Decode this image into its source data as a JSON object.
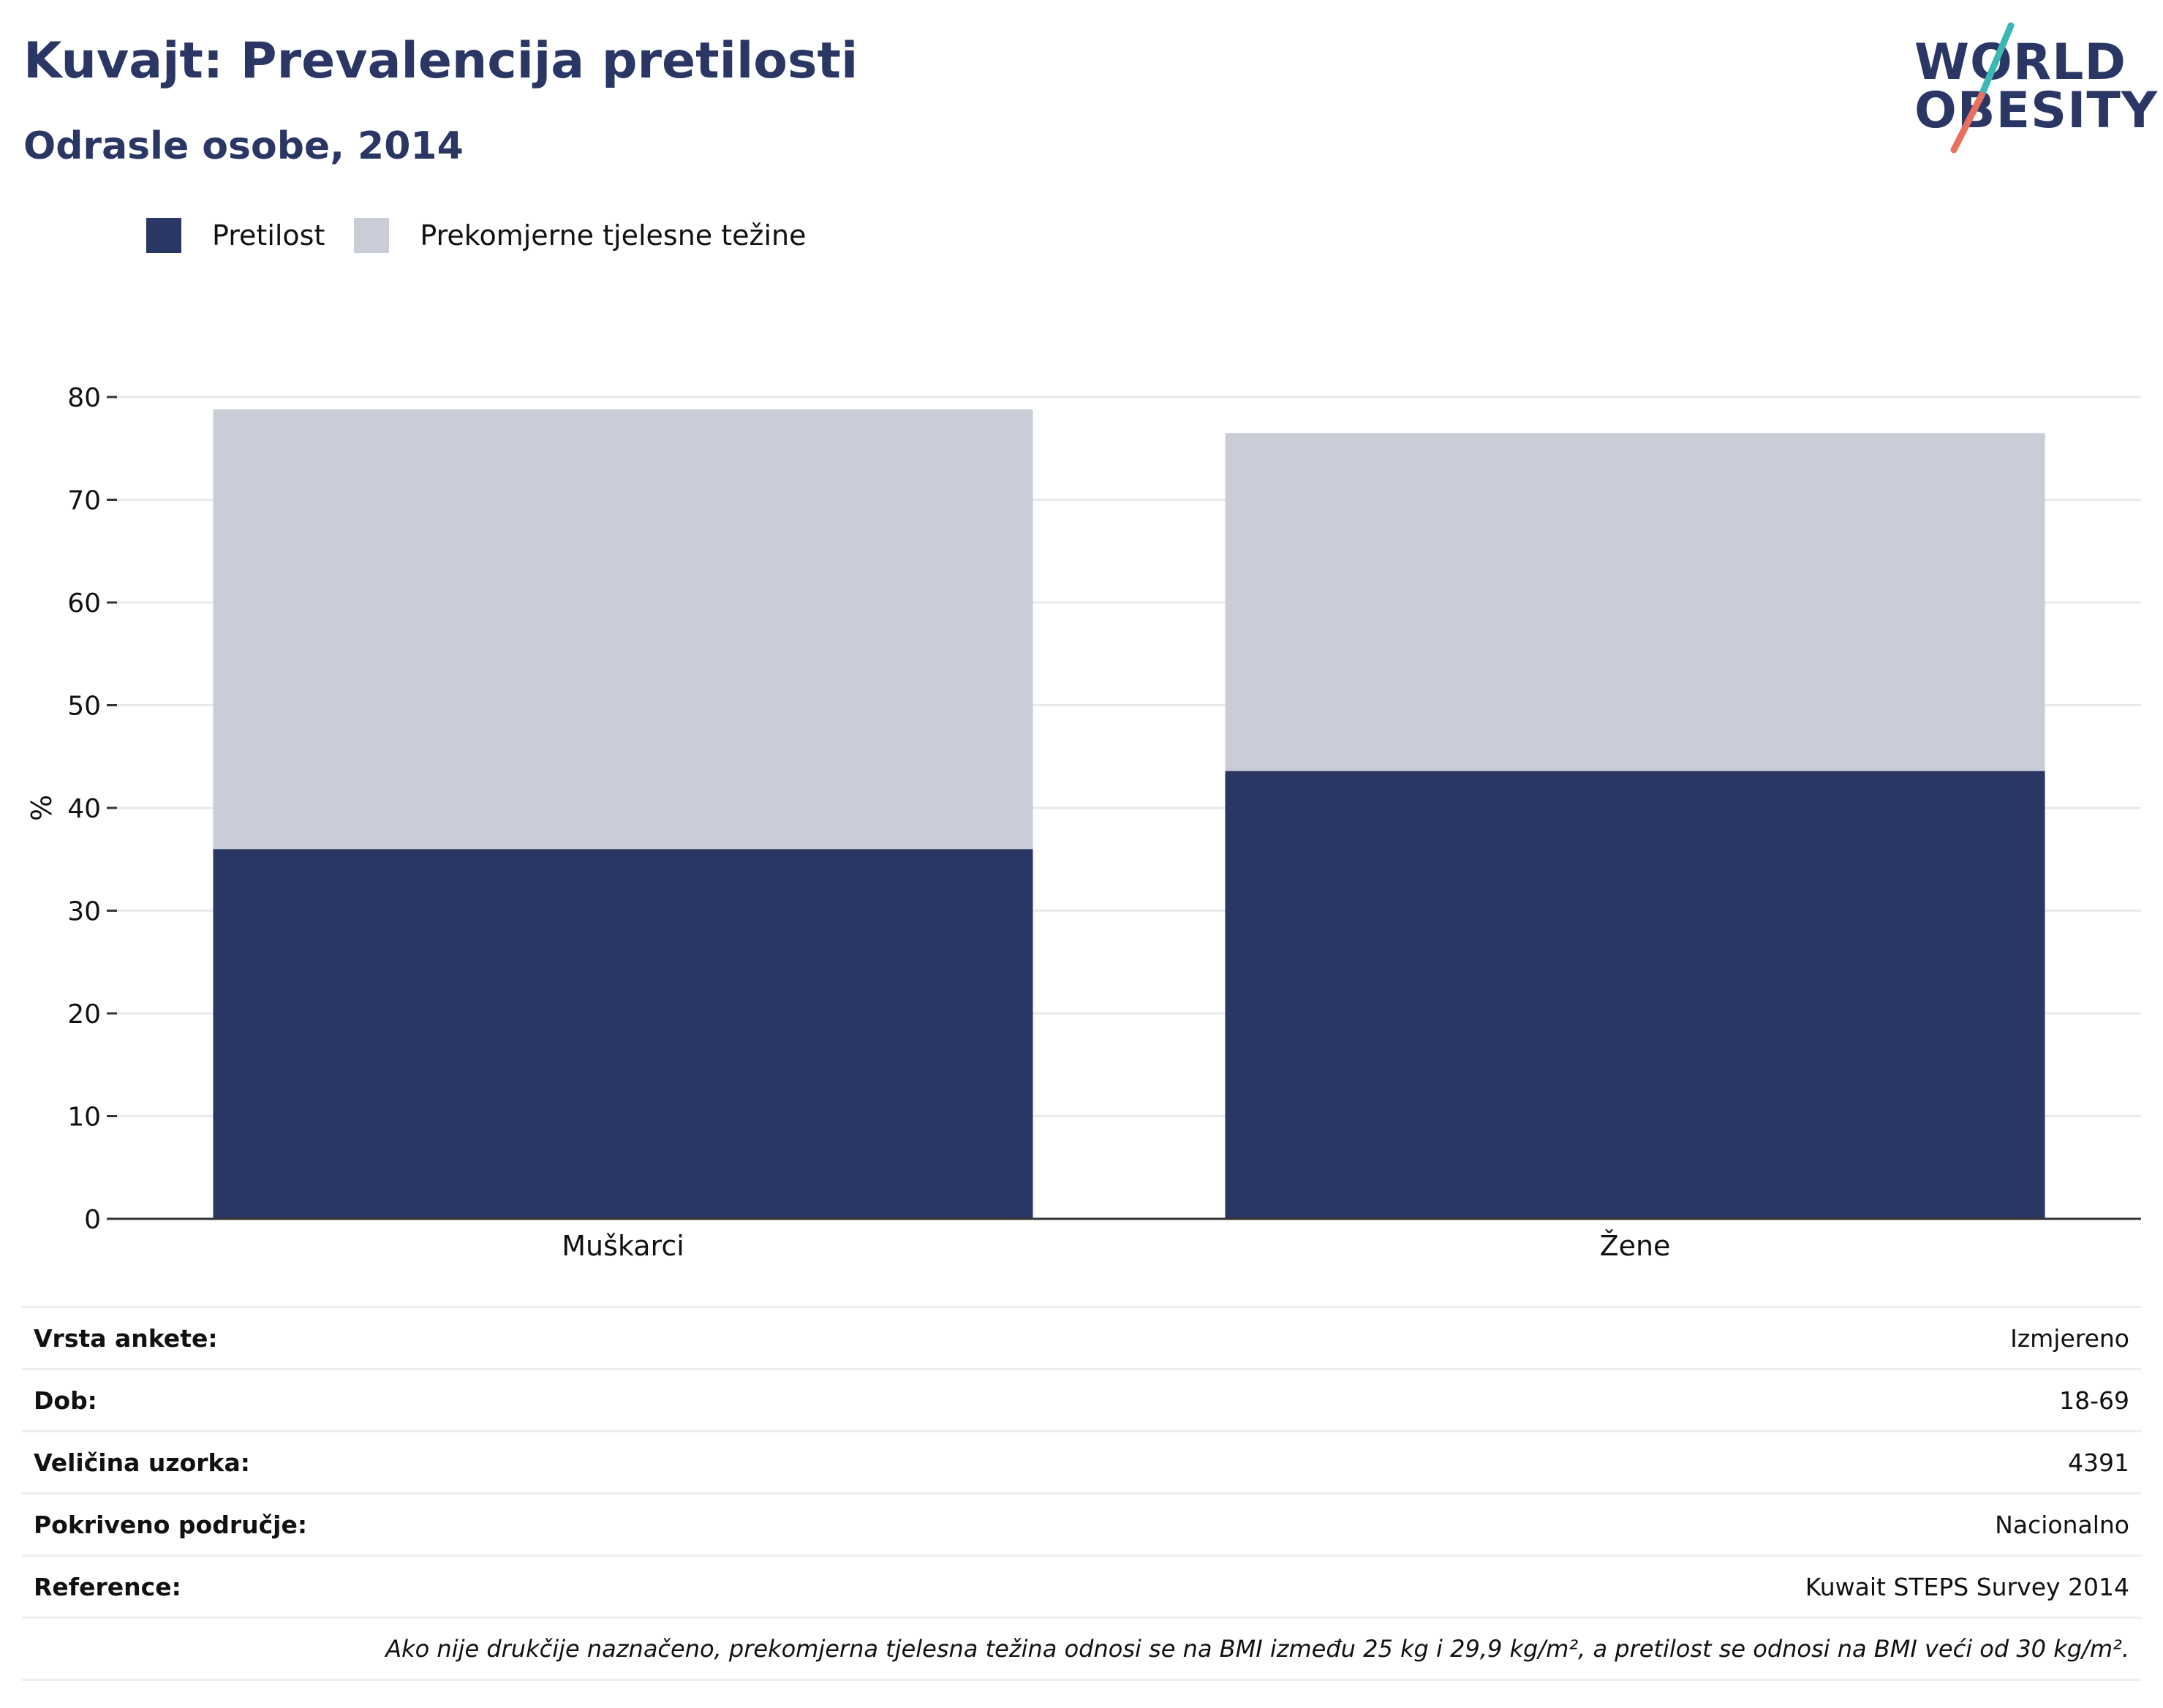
{
  "header": {
    "title": "Kuvajt: Prevalencija pretilosti",
    "subtitle": "Odrasle osobe, 2014"
  },
  "logo": {
    "line1": "WORLD",
    "line2": "OBESITY",
    "colors": {
      "text": "#2a3664",
      "slash_top": "#3bb8b4",
      "slash_bottom": "#e8705e"
    }
  },
  "legend": {
    "items": [
      {
        "label": "Pretilost",
        "color": "#2a3664"
      },
      {
        "label": "Prekomjerne tjelesne težine",
        "color": "#cacdd8"
      }
    ]
  },
  "chart_data": {
    "type": "bar",
    "stacked": true,
    "categories": [
      "Muškarci",
      "Žene"
    ],
    "series": [
      {
        "name": "Pretilost",
        "values": [
          36.0,
          43.6
        ],
        "color": "#2a3664"
      },
      {
        "name": "Prekomjerne tjelesne težine",
        "values": [
          42.8,
          32.9
        ],
        "color": "#cacdd8"
      }
    ],
    "ylabel": "%",
    "ylim": [
      0,
      80
    ],
    "yticks": [
      0,
      10,
      20,
      30,
      40,
      50,
      60,
      70,
      80
    ],
    "grid": true,
    "legend_position": "top-left"
  },
  "info": {
    "rows": [
      {
        "label": "Vrsta ankete:",
        "value": "Izmjereno"
      },
      {
        "label": "Dob:",
        "value": "18-69"
      },
      {
        "label": "Veličina uzorka:",
        "value": "4391"
      },
      {
        "label": "Pokriveno područje:",
        "value": "Nacionalno"
      },
      {
        "label": "Reference:",
        "value": "Kuwait STEPS Survey 2014"
      }
    ],
    "note": "Ako nije drukčije naznačeno, prekomjerna tjelesna težina odnosi se na BMI između 25 kg i 29,9 kg/m², a pretilost se odnosi na BMI veći od 30 kg/m²."
  }
}
